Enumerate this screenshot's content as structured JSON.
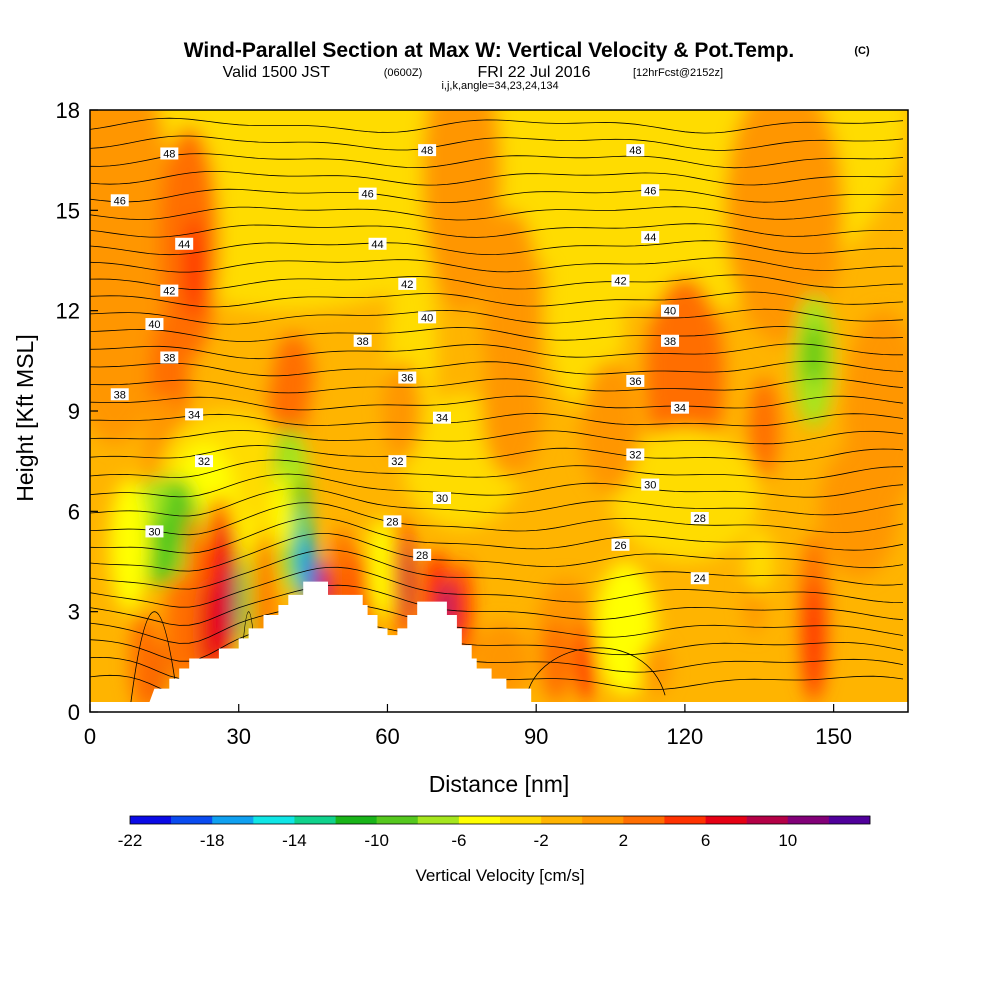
{
  "title": {
    "main": "Wind-Parallel Section at Max W: Vertical Velocity & Pot.Temp.",
    "copyright": "(C)",
    "valid_prefix": "Valid 1500 JST",
    "valid_utc": "(0600Z)",
    "valid_date": "FRI 22 Jul 2016",
    "forecast": "[12hrFcst@2152z]",
    "grid_info": "i,j,k,angle=34,23,24,134"
  },
  "chart_data": {
    "type": "heatmap",
    "xlabel": "Distance [nm]",
    "ylabel": "Height [Kft MSL]",
    "xlim": [
      0,
      165
    ],
    "ylim": [
      0,
      18
    ],
    "x_ticks": [
      0,
      30,
      60,
      90,
      120,
      150
    ],
    "y_ticks": [
      0,
      3,
      6,
      9,
      12,
      15,
      18
    ],
    "colorbar": {
      "label": "Vertical Velocity [cm/s]",
      "ticks": [
        -22,
        -18,
        -14,
        -10,
        -6,
        -2,
        2,
        6,
        10
      ],
      "colors": [
        "#0a0ae6",
        "#0a4bf0",
        "#0fa0f0",
        "#10e6e6",
        "#10d28c",
        "#19b419",
        "#55c81e",
        "#a5e61e",
        "#ffff00",
        "#ffdc00",
        "#ffb400",
        "#ff9600",
        "#ff6e00",
        "#ff3200",
        "#e60014",
        "#b40046",
        "#820078",
        "#50009b"
      ]
    },
    "terrain": [
      [
        0,
        0.3
      ],
      [
        12,
        0.3
      ],
      [
        13,
        0.7
      ],
      [
        16,
        0.7
      ],
      [
        16,
        1.0
      ],
      [
        18,
        1.0
      ],
      [
        18,
        1.3
      ],
      [
        20,
        1.3
      ],
      [
        20,
        1.6
      ],
      [
        26,
        1.6
      ],
      [
        26,
        1.9
      ],
      [
        30,
        1.9
      ],
      [
        30,
        2.2
      ],
      [
        32,
        2.2
      ],
      [
        32,
        2.5
      ],
      [
        35,
        2.5
      ],
      [
        35,
        2.9
      ],
      [
        38,
        2.9
      ],
      [
        38,
        3.2
      ],
      [
        40,
        3.2
      ],
      [
        40,
        3.5
      ],
      [
        43,
        3.5
      ],
      [
        43,
        3.9
      ],
      [
        48,
        3.9
      ],
      [
        48,
        3.5
      ],
      [
        55,
        3.5
      ],
      [
        55,
        3.2
      ],
      [
        56,
        3.2
      ],
      [
        56,
        2.9
      ],
      [
        58,
        2.9
      ],
      [
        58,
        2.5
      ],
      [
        60,
        2.5
      ],
      [
        60,
        2.3
      ],
      [
        62,
        2.3
      ],
      [
        62,
        2.5
      ],
      [
        64,
        2.5
      ],
      [
        64,
        2.9
      ],
      [
        66,
        2.9
      ],
      [
        66,
        3.3
      ],
      [
        72,
        3.3
      ],
      [
        72,
        2.9
      ],
      [
        74,
        2.9
      ],
      [
        74,
        2.5
      ],
      [
        75,
        2.5
      ],
      [
        75,
        2.0
      ],
      [
        77,
        2.0
      ],
      [
        77,
        1.6
      ],
      [
        78,
        1.6
      ],
      [
        78,
        1.3
      ],
      [
        81,
        1.3
      ],
      [
        81,
        1.0
      ],
      [
        84,
        1.0
      ],
      [
        84,
        0.7
      ],
      [
        89,
        0.7
      ],
      [
        89,
        0.3
      ],
      [
        165,
        0.3
      ]
    ],
    "isentrope_labels": [
      {
        "text": "48",
        "x": 16,
        "y": 16.7
      },
      {
        "text": "48",
        "x": 68,
        "y": 16.8
      },
      {
        "text": "48",
        "x": 110,
        "y": 16.8
      },
      {
        "text": "46",
        "x": 6,
        "y": 15.3
      },
      {
        "text": "46",
        "x": 56,
        "y": 15.5
      },
      {
        "text": "46",
        "x": 113,
        "y": 15.6
      },
      {
        "text": "44",
        "x": 19,
        "y": 14.0
      },
      {
        "text": "44",
        "x": 58,
        "y": 14.0
      },
      {
        "text": "44",
        "x": 113,
        "y": 14.2
      },
      {
        "text": "42",
        "x": 16,
        "y": 12.6
      },
      {
        "text": "42",
        "x": 64,
        "y": 12.8
      },
      {
        "text": "42",
        "x": 107,
        "y": 12.9
      },
      {
        "text": "40",
        "x": 13,
        "y": 11.6
      },
      {
        "text": "40",
        "x": 68,
        "y": 11.8
      },
      {
        "text": "40",
        "x": 117,
        "y": 12.0
      },
      {
        "text": "38",
        "x": 16,
        "y": 10.6
      },
      {
        "text": "38",
        "x": 55,
        "y": 11.1
      },
      {
        "text": "38",
        "x": 117,
        "y": 11.1
      },
      {
        "text": "38",
        "x": 6,
        "y": 9.5
      },
      {
        "text": "36",
        "x": 64,
        "y": 10.0
      },
      {
        "text": "36",
        "x": 110,
        "y": 9.9
      },
      {
        "text": "34",
        "x": 21,
        "y": 8.9
      },
      {
        "text": "34",
        "x": 71,
        "y": 8.8
      },
      {
        "text": "34",
        "x": 119,
        "y": 9.1
      },
      {
        "text": "32",
        "x": 23,
        "y": 7.5
      },
      {
        "text": "32",
        "x": 62,
        "y": 7.5
      },
      {
        "text": "32",
        "x": 110,
        "y": 7.7
      },
      {
        "text": "30",
        "x": 13,
        "y": 5.4
      },
      {
        "text": "30",
        "x": 71,
        "y": 6.4
      },
      {
        "text": "30",
        "x": 113,
        "y": 6.8
      },
      {
        "text": "28",
        "x": 61,
        "y": 5.7
      },
      {
        "text": "28",
        "x": 67,
        "y": 4.7
      },
      {
        "text": "28",
        "x": 123,
        "y": 5.8
      },
      {
        "text": "26",
        "x": 107,
        "y": 5.0
      },
      {
        "text": "24",
        "x": 123,
        "y": 4.0
      }
    ]
  }
}
